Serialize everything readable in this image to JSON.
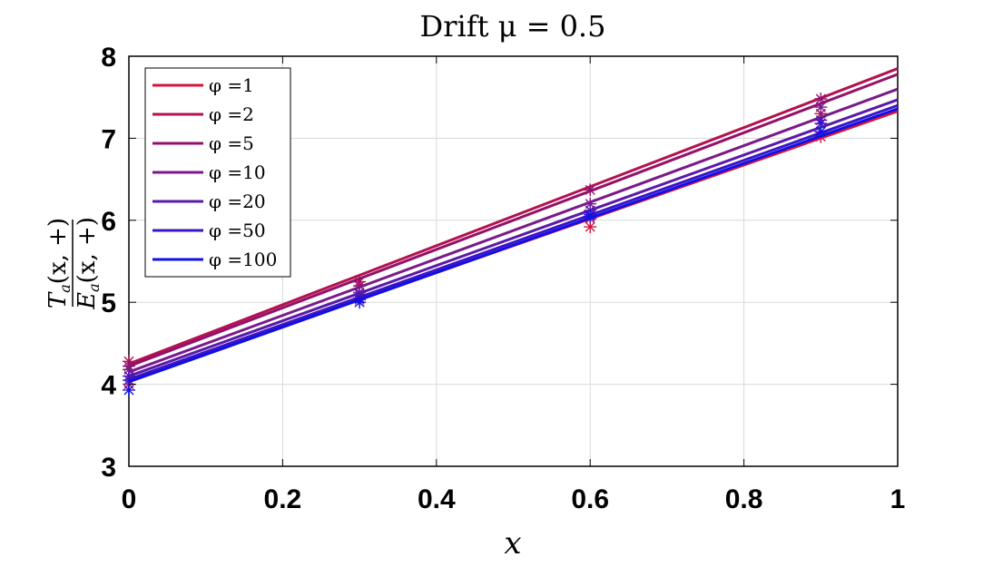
{
  "chart_data": {
    "type": "line",
    "title": "Drift μ = 0.5",
    "xlabel": "x",
    "ylabel": {
      "num_main": "T",
      "num_sub": "a",
      "num_args": "(x, +)",
      "den_main": "E",
      "den_sub": "a",
      "den_args": "(x, +)"
    },
    "xlim": [
      0,
      1
    ],
    "ylim": [
      3,
      8
    ],
    "xticks": [
      0,
      0.2,
      0.4,
      0.6,
      0.8,
      1
    ],
    "xtick_labels": [
      "0",
      "0.2",
      "0.4",
      "0.6",
      "0.8",
      "1"
    ],
    "yticks": [
      3,
      4,
      5,
      6,
      7,
      8
    ],
    "ytick_labels": [
      "3",
      "4",
      "5",
      "6",
      "7",
      "8"
    ],
    "grid": true,
    "legend_position": "top-left",
    "series": [
      {
        "name": "φ =1",
        "color": "#d4143a",
        "line": [
          [
            0,
            4.05
          ],
          [
            1,
            7.33
          ]
        ],
        "markers": [
          [
            0,
            4.0
          ],
          [
            0.3,
            5.03
          ],
          [
            0.6,
            5.92
          ],
          [
            0.9,
            7.02
          ]
        ]
      },
      {
        "name": "φ =2",
        "color": "#b2124f",
        "line": [
          [
            0,
            4.25
          ],
          [
            1,
            7.85
          ]
        ],
        "markers": [
          [
            0,
            4.28
          ],
          [
            0.3,
            5.25
          ],
          [
            0.6,
            6.02
          ],
          [
            0.9,
            7.3
          ]
        ]
      },
      {
        "name": "φ =5",
        "color": "#94106a",
        "line": [
          [
            0,
            4.22
          ],
          [
            1,
            7.78
          ]
        ],
        "markers": [
          [
            0,
            4.22
          ],
          [
            0.3,
            5.2
          ],
          [
            0.6,
            6.37
          ],
          [
            0.9,
            7.48
          ]
        ]
      },
      {
        "name": "φ =10",
        "color": "#7a1a8a",
        "line": [
          [
            0,
            4.15
          ],
          [
            1,
            7.6
          ]
        ],
        "markers": [
          [
            0,
            4.18
          ],
          [
            0.3,
            5.12
          ],
          [
            0.6,
            6.2
          ],
          [
            0.9,
            7.38
          ]
        ]
      },
      {
        "name": "φ =20",
        "color": "#5a1aa8",
        "line": [
          [
            0,
            4.1
          ],
          [
            1,
            7.47
          ]
        ],
        "markers": [
          [
            0,
            4.1
          ],
          [
            0.3,
            5.1
          ],
          [
            0.6,
            6.12
          ],
          [
            0.9,
            7.22
          ]
        ]
      },
      {
        "name": "φ =50",
        "color": "#3a14c8",
        "line": [
          [
            0,
            4.06
          ],
          [
            1,
            7.4
          ]
        ],
        "markers": [
          [
            0,
            4.05
          ],
          [
            0.3,
            5.05
          ],
          [
            0.6,
            6.07
          ],
          [
            0.9,
            7.18
          ]
        ]
      },
      {
        "name": "φ =100",
        "color": "#1010e6",
        "line": [
          [
            0,
            4.03
          ],
          [
            1,
            7.36
          ]
        ],
        "markers": [
          [
            0,
            3.93
          ],
          [
            0.3,
            5.0
          ],
          [
            0.6,
            6.05
          ],
          [
            0.9,
            7.08
          ]
        ]
      }
    ]
  }
}
